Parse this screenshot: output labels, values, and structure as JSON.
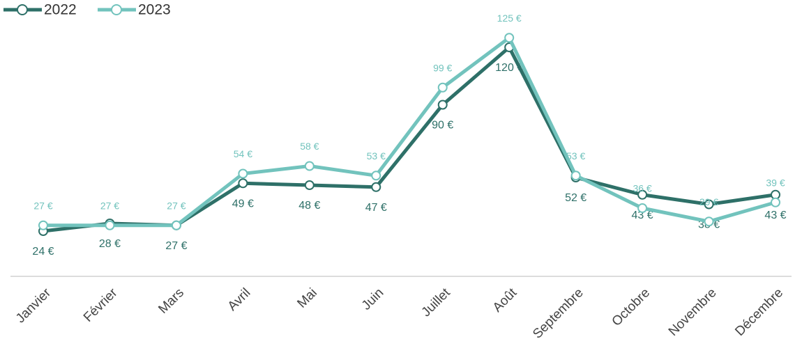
{
  "chart_data": {
    "type": "line",
    "categories": [
      "Janvier",
      "Février",
      "Mars",
      "Avril",
      "Mai",
      "Juin",
      "Juillet",
      "Août",
      "Septembre",
      "Octobre",
      "Novembre",
      "Décembre"
    ],
    "series": [
      {
        "name": "2022",
        "color": "#2e7068",
        "values": [
          24,
          28,
          27,
          49,
          48,
          47,
          90,
          120,
          52,
          43,
          38,
          43
        ],
        "value_labels": [
          "24 €",
          "28 €",
          "27 €",
          "49 €",
          "48 €",
          "47 €",
          "90 €",
          "120 €",
          "52 €",
          "43 €",
          "38 €",
          "43 €"
        ]
      },
      {
        "name": "2023",
        "color": "#72c3bd",
        "values": [
          27,
          27,
          27,
          54,
          58,
          53,
          99,
          125,
          53,
          36,
          29,
          39
        ],
        "value_labels": [
          "27 €",
          "27 €",
          "27 €",
          "54 €",
          "58 €",
          "53 €",
          "99 €",
          "125 €",
          "53 €",
          "36 €",
          "29 €",
          "39 €"
        ]
      }
    ],
    "ylim": [
      0,
      140
    ],
    "grid": false,
    "legend": "top-left"
  }
}
